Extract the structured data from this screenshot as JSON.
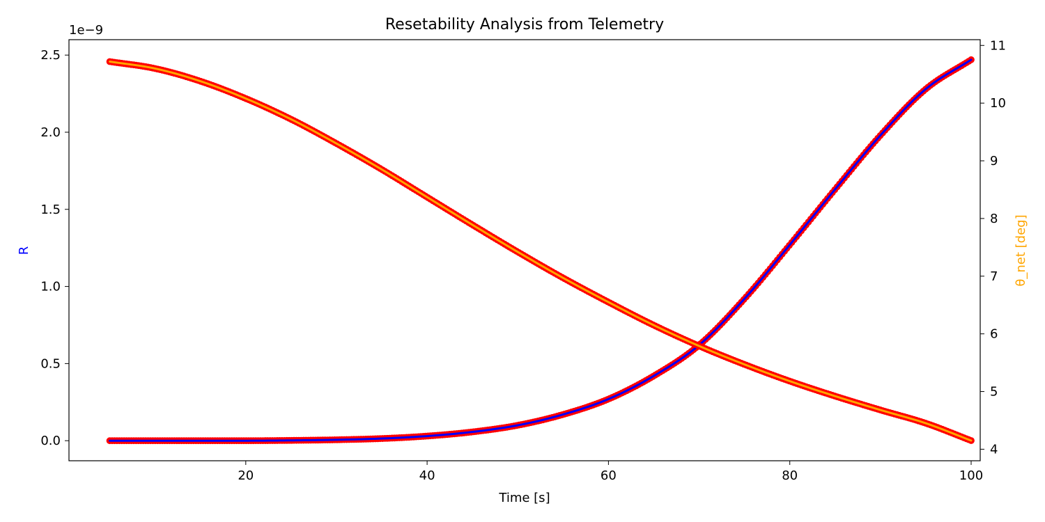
{
  "chart_data": {
    "type": "line",
    "title": "Resetability Analysis from Telemetry",
    "xlabel": "Time [s]",
    "ylabel_left": "R",
    "ylabel_right": "θ_net [deg]",
    "left_axis_offset_label": "1e−9",
    "xlim": [
      0.5,
      101
    ],
    "ylim_left": [
      -0.13,
      2.6
    ],
    "ylim_right": [
      3.8,
      11.1
    ],
    "x_ticks": [
      20,
      40,
      60,
      80,
      100
    ],
    "y_left_ticks": [
      "0.0",
      "0.5",
      "1.0",
      "1.5",
      "2.0",
      "2.5"
    ],
    "y_left_tick_values": [
      0.0,
      0.5,
      1.0,
      1.5,
      2.0,
      2.5
    ],
    "y_right_ticks": [
      4,
      5,
      6,
      7,
      8,
      9,
      10,
      11
    ],
    "grid": false,
    "colors": {
      "R_line": "#0000ff",
      "theta_line": "#ffa500",
      "markers": "#ff0000",
      "right_label": "#ffa500",
      "left_label": "#0000ff"
    },
    "series": [
      {
        "axis": "left",
        "unit_scale": "1e-9",
        "x": [
          5,
          10,
          15,
          20,
          25,
          30,
          35,
          40,
          45,
          50,
          55,
          60,
          65,
          70,
          75,
          80,
          85,
          90,
          95,
          100
        ],
        "values": [
          0.0,
          0.0,
          0.0,
          0.0,
          0.002,
          0.006,
          0.014,
          0.03,
          0.057,
          0.1,
          0.17,
          0.27,
          0.42,
          0.62,
          0.92,
          1.27,
          1.63,
          1.98,
          2.28,
          2.47
        ]
      },
      {
        "axis": "right",
        "x": [
          5,
          10,
          15,
          20,
          25,
          30,
          35,
          40,
          45,
          50,
          55,
          60,
          65,
          70,
          75,
          80,
          85,
          90,
          95,
          100
        ],
        "values": [
          10.72,
          10.6,
          10.38,
          10.08,
          9.72,
          9.3,
          8.85,
          8.37,
          7.89,
          7.42,
          6.97,
          6.55,
          6.15,
          5.79,
          5.47,
          5.18,
          4.92,
          4.68,
          4.45,
          4.15
        ]
      }
    ]
  }
}
